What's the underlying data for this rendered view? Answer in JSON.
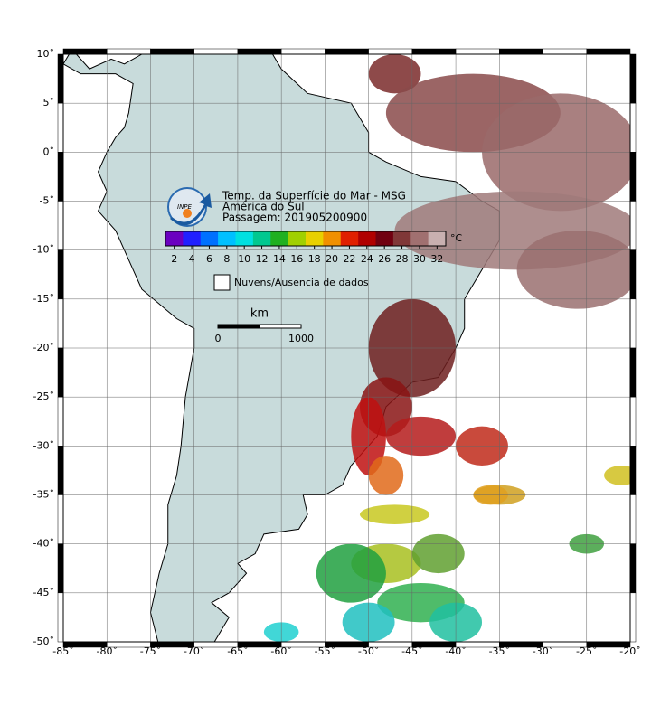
{
  "map": {
    "title": [
      "Temp. da Superfície do Mar - MSG",
      "América do Sul",
      "Passagem: 201905200900"
    ],
    "logo": "INPE",
    "colorbar": {
      "unit": "°C",
      "lim": [
        1,
        33
      ],
      "ticks": [
        2,
        4,
        6,
        8,
        10,
        12,
        14,
        16,
        18,
        20,
        22,
        24,
        26,
        28,
        30,
        32
      ]
    },
    "legend": "Nuvens/Ausencia de dados",
    "scale": {
      "unit": "km",
      "ticks": [
        0,
        1000
      ]
    },
    "xlim": [
      -85,
      -20
    ],
    "ylim": [
      -50,
      10
    ],
    "xticks": [
      {
        "value": -85,
        "label": "-85˚"
      },
      {
        "value": -80,
        "label": "-80˚"
      },
      {
        "value": -75,
        "label": "-75˚"
      },
      {
        "value": -70,
        "label": "-70˚"
      },
      {
        "value": -65,
        "label": "-65˚"
      },
      {
        "value": -60,
        "label": "-60˚"
      },
      {
        "value": -55,
        "label": "-55˚"
      },
      {
        "value": -50,
        "label": "-50˚"
      },
      {
        "value": -45,
        "label": "-45˚"
      },
      {
        "value": -40,
        "label": "-40˚"
      },
      {
        "value": -35,
        "label": "-35˚"
      },
      {
        "value": -30,
        "label": "-30˚"
      },
      {
        "value": -25,
        "label": "-25˚"
      },
      {
        "value": -20,
        "label": "-20˚"
      }
    ],
    "yticks": [
      {
        "value": 10,
        "label": "10˚"
      },
      {
        "value": 5,
        "label": "5˚"
      },
      {
        "value": 0,
        "label": "0˚"
      },
      {
        "value": -5,
        "label": "-5˚"
      },
      {
        "value": -10,
        "label": "-10˚"
      },
      {
        "value": -15,
        "label": "-15˚"
      },
      {
        "value": -20,
        "label": "-20˚"
      },
      {
        "value": -25,
        "label": "-25˚"
      },
      {
        "value": -30,
        "label": "-30˚"
      },
      {
        "value": -35,
        "label": "-35˚"
      },
      {
        "value": -40,
        "label": "-40˚"
      },
      {
        "value": -45,
        "label": "-45˚"
      },
      {
        "value": -50,
        "label": "-50˚"
      }
    ]
  }
}
